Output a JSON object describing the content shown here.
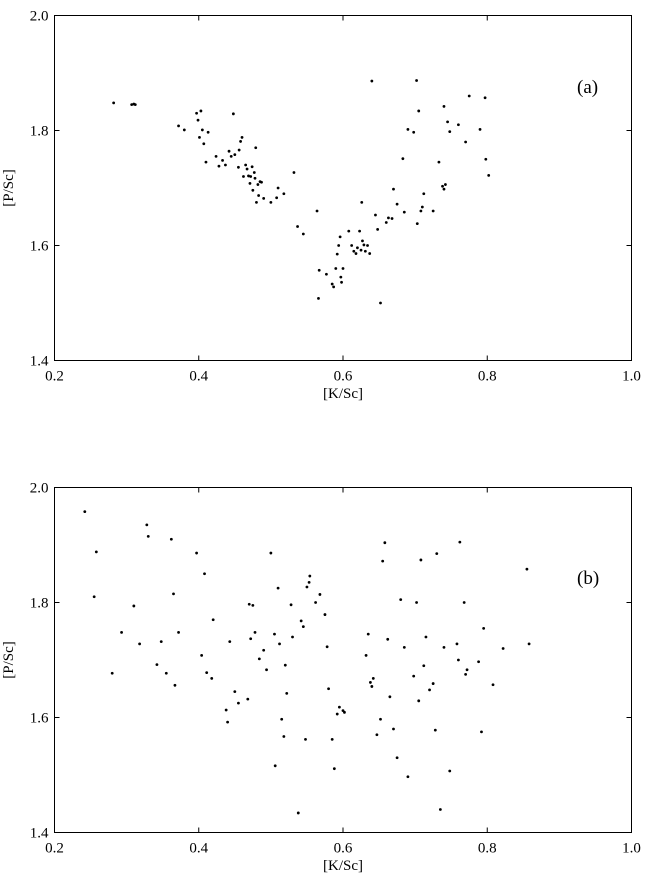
{
  "chart_data": [
    {
      "type": "scatter",
      "panel_label": "(a)",
      "xlabel": "[K/Sc]",
      "ylabel": "[P/Sc]",
      "xlim": [
        0.2,
        1.0
      ],
      "ylim": [
        1.4,
        2.0
      ],
      "x_ticks": [
        0.2,
        0.4,
        0.6,
        0.8,
        1.0
      ],
      "x_tick_labels": [
        "0.2",
        "0.4",
        "0.6",
        "0.8",
        "1.0"
      ],
      "y_ticks": [
        1.4,
        1.6,
        1.8,
        2.0
      ],
      "y_tick_labels": [
        "1.4",
        "1.6",
        "1.8",
        "2.0"
      ],
      "grid": false,
      "points": [
        [
          0.282,
          1.848
        ],
        [
          0.307,
          1.845
        ],
        [
          0.31,
          1.846
        ],
        [
          0.312,
          1.845
        ],
        [
          0.372,
          1.808
        ],
        [
          0.38,
          1.801
        ],
        [
          0.397,
          1.83
        ],
        [
          0.403,
          1.834
        ],
        [
          0.399,
          1.818
        ],
        [
          0.405,
          1.801
        ],
        [
          0.401,
          1.788
        ],
        [
          0.407,
          1.777
        ],
        [
          0.413,
          1.797
        ],
        [
          0.41,
          1.745
        ],
        [
          0.424,
          1.755
        ],
        [
          0.428,
          1.738
        ],
        [
          0.433,
          1.748
        ],
        [
          0.437,
          1.74
        ],
        [
          0.442,
          1.764
        ],
        [
          0.445,
          1.755
        ],
        [
          0.448,
          1.829
        ],
        [
          0.45,
          1.758
        ],
        [
          0.455,
          1.736
        ],
        [
          0.456,
          1.766
        ],
        [
          0.458,
          1.781
        ],
        [
          0.46,
          1.788
        ],
        [
          0.462,
          1.72
        ],
        [
          0.465,
          1.74
        ],
        [
          0.467,
          1.733
        ],
        [
          0.469,
          1.721
        ],
        [
          0.471,
          1.708
        ],
        [
          0.472,
          1.72
        ],
        [
          0.474,
          1.737
        ],
        [
          0.475,
          1.696
        ],
        [
          0.477,
          1.727
        ],
        [
          0.478,
          1.717
        ],
        [
          0.479,
          1.77
        ],
        [
          0.48,
          1.675
        ],
        [
          0.482,
          1.706
        ],
        [
          0.483,
          1.687
        ],
        [
          0.485,
          1.711
        ],
        [
          0.487,
          1.71
        ],
        [
          0.49,
          1.682
        ],
        [
          0.5,
          1.675
        ],
        [
          0.508,
          1.683
        ],
        [
          0.51,
          1.7
        ],
        [
          0.518,
          1.69
        ],
        [
          0.532,
          1.727
        ],
        [
          0.537,
          1.633
        ],
        [
          0.545,
          1.62
        ],
        [
          0.564,
          1.66
        ],
        [
          0.567,
          1.557
        ],
        [
          0.566,
          1.508
        ],
        [
          0.577,
          1.55
        ],
        [
          0.585,
          1.533
        ],
        [
          0.587,
          1.528
        ],
        [
          0.59,
          1.56
        ],
        [
          0.592,
          1.585
        ],
        [
          0.594,
          1.6
        ],
        [
          0.596,
          1.615
        ],
        [
          0.597,
          1.545
        ],
        [
          0.598,
          1.536
        ],
        [
          0.6,
          1.56
        ],
        [
          0.608,
          1.625
        ],
        [
          0.612,
          1.6
        ],
        [
          0.615,
          1.59
        ],
        [
          0.618,
          1.586
        ],
        [
          0.62,
          1.596
        ],
        [
          0.625,
          1.592
        ],
        [
          0.623,
          1.625
        ],
        [
          0.626,
          1.675
        ],
        [
          0.627,
          1.608
        ],
        [
          0.629,
          1.601
        ],
        [
          0.631,
          1.59
        ],
        [
          0.634,
          1.6
        ],
        [
          0.637,
          1.586
        ],
        [
          0.64,
          1.886
        ],
        [
          0.645,
          1.653
        ],
        [
          0.648,
          1.628
        ],
        [
          0.652,
          1.5
        ],
        [
          0.66,
          1.64
        ],
        [
          0.663,
          1.648
        ],
        [
          0.668,
          1.647
        ],
        [
          0.67,
          1.698
        ],
        [
          0.675,
          1.672
        ],
        [
          0.683,
          1.751
        ],
        [
          0.685,
          1.658
        ],
        [
          0.69,
          1.802
        ],
        [
          0.698,
          1.797
        ],
        [
          0.702,
          1.887
        ],
        [
          0.703,
          1.638
        ],
        [
          0.705,
          1.834
        ],
        [
          0.708,
          1.66
        ],
        [
          0.71,
          1.667
        ],
        [
          0.712,
          1.69
        ],
        [
          0.725,
          1.66
        ],
        [
          0.733,
          1.745
        ],
        [
          0.738,
          1.703
        ],
        [
          0.74,
          1.698
        ],
        [
          0.742,
          1.706
        ],
        [
          0.74,
          1.842
        ],
        [
          0.745,
          1.815
        ],
        [
          0.748,
          1.798
        ],
        [
          0.76,
          1.81
        ],
        [
          0.77,
          1.78
        ],
        [
          0.775,
          1.86
        ],
        [
          0.79,
          1.802
        ],
        [
          0.797,
          1.857
        ],
        [
          0.798,
          1.75
        ],
        [
          0.802,
          1.722
        ]
      ]
    },
    {
      "type": "scatter",
      "panel_label": "(b)",
      "xlabel": "[K/Sc]",
      "ylabel": "[P/Sc]",
      "xlim": [
        0.2,
        1.0
      ],
      "ylim": [
        1.4,
        2.0
      ],
      "x_ticks": [
        0.2,
        0.4,
        0.6,
        0.8,
        1.0
      ],
      "x_tick_labels": [
        "0.2",
        "0.4",
        "0.6",
        "0.8",
        "1.0"
      ],
      "y_ticks": [
        1.4,
        1.6,
        1.8,
        2.0
      ],
      "y_tick_labels": [
        "1.4",
        "1.6",
        "1.8",
        "2.0"
      ],
      "grid": false,
      "points": [
        [
          0.242,
          1.958
        ],
        [
          0.255,
          1.81
        ],
        [
          0.258,
          1.888
        ],
        [
          0.28,
          1.677
        ],
        [
          0.293,
          1.748
        ],
        [
          0.31,
          1.794
        ],
        [
          0.318,
          1.728
        ],
        [
          0.328,
          1.935
        ],
        [
          0.33,
          1.915
        ],
        [
          0.342,
          1.692
        ],
        [
          0.348,
          1.732
        ],
        [
          0.355,
          1.677
        ],
        [
          0.362,
          1.91
        ],
        [
          0.365,
          1.815
        ],
        [
          0.367,
          1.656
        ],
        [
          0.372,
          1.748
        ],
        [
          0.397,
          1.886
        ],
        [
          0.404,
          1.708
        ],
        [
          0.408,
          1.85
        ],
        [
          0.411,
          1.678
        ],
        [
          0.418,
          1.668
        ],
        [
          0.42,
          1.77
        ],
        [
          0.438,
          1.613
        ],
        [
          0.44,
          1.592
        ],
        [
          0.443,
          1.732
        ],
        [
          0.45,
          1.645
        ],
        [
          0.455,
          1.625
        ],
        [
          0.468,
          1.632
        ],
        [
          0.47,
          1.797
        ],
        [
          0.472,
          1.737
        ],
        [
          0.475,
          1.795
        ],
        [
          0.478,
          1.748
        ],
        [
          0.484,
          1.702
        ],
        [
          0.49,
          1.717
        ],
        [
          0.494,
          1.683
        ],
        [
          0.5,
          1.886
        ],
        [
          0.505,
          1.745
        ],
        [
          0.506,
          1.516
        ],
        [
          0.51,
          1.825
        ],
        [
          0.512,
          1.728
        ],
        [
          0.515,
          1.597
        ],
        [
          0.518,
          1.567
        ],
        [
          0.52,
          1.691
        ],
        [
          0.522,
          1.642
        ],
        [
          0.528,
          1.796
        ],
        [
          0.53,
          1.74
        ],
        [
          0.538,
          1.434
        ],
        [
          0.542,
          1.768
        ],
        [
          0.545,
          1.758
        ],
        [
          0.548,
          1.562
        ],
        [
          0.55,
          1.827
        ],
        [
          0.553,
          1.835
        ],
        [
          0.554,
          1.846
        ],
        [
          0.562,
          1.8
        ],
        [
          0.568,
          1.814
        ],
        [
          0.575,
          1.779
        ],
        [
          0.578,
          1.723
        ],
        [
          0.58,
          1.65
        ],
        [
          0.585,
          1.562
        ],
        [
          0.588,
          1.511
        ],
        [
          0.592,
          1.606
        ],
        [
          0.595,
          1.618
        ],
        [
          0.6,
          1.612
        ],
        [
          0.602,
          1.609
        ],
        [
          0.632,
          1.708
        ],
        [
          0.635,
          1.745
        ],
        [
          0.638,
          1.661
        ],
        [
          0.64,
          1.654
        ],
        [
          0.642,
          1.668
        ],
        [
          0.647,
          1.57
        ],
        [
          0.652,
          1.597
        ],
        [
          0.655,
          1.872
        ],
        [
          0.658,
          1.904
        ],
        [
          0.662,
          1.736
        ],
        [
          0.665,
          1.636
        ],
        [
          0.67,
          1.58
        ],
        [
          0.675,
          1.53
        ],
        [
          0.68,
          1.805
        ],
        [
          0.685,
          1.722
        ],
        [
          0.69,
          1.497
        ],
        [
          0.698,
          1.672
        ],
        [
          0.702,
          1.8
        ],
        [
          0.705,
          1.629
        ],
        [
          0.708,
          1.874
        ],
        [
          0.712,
          1.69
        ],
        [
          0.715,
          1.74
        ],
        [
          0.72,
          1.648
        ],
        [
          0.725,
          1.659
        ],
        [
          0.728,
          1.578
        ],
        [
          0.73,
          1.885
        ],
        [
          0.735,
          1.44
        ],
        [
          0.74,
          1.722
        ],
        [
          0.748,
          1.507
        ],
        [
          0.758,
          1.728
        ],
        [
          0.76,
          1.7
        ],
        [
          0.762,
          1.905
        ],
        [
          0.768,
          1.8
        ],
        [
          0.77,
          1.675
        ],
        [
          0.772,
          1.683
        ],
        [
          0.788,
          1.697
        ],
        [
          0.792,
          1.575
        ],
        [
          0.795,
          1.755
        ],
        [
          0.808,
          1.657
        ],
        [
          0.822,
          1.72
        ],
        [
          0.855,
          1.858
        ],
        [
          0.858,
          1.728
        ]
      ]
    }
  ]
}
